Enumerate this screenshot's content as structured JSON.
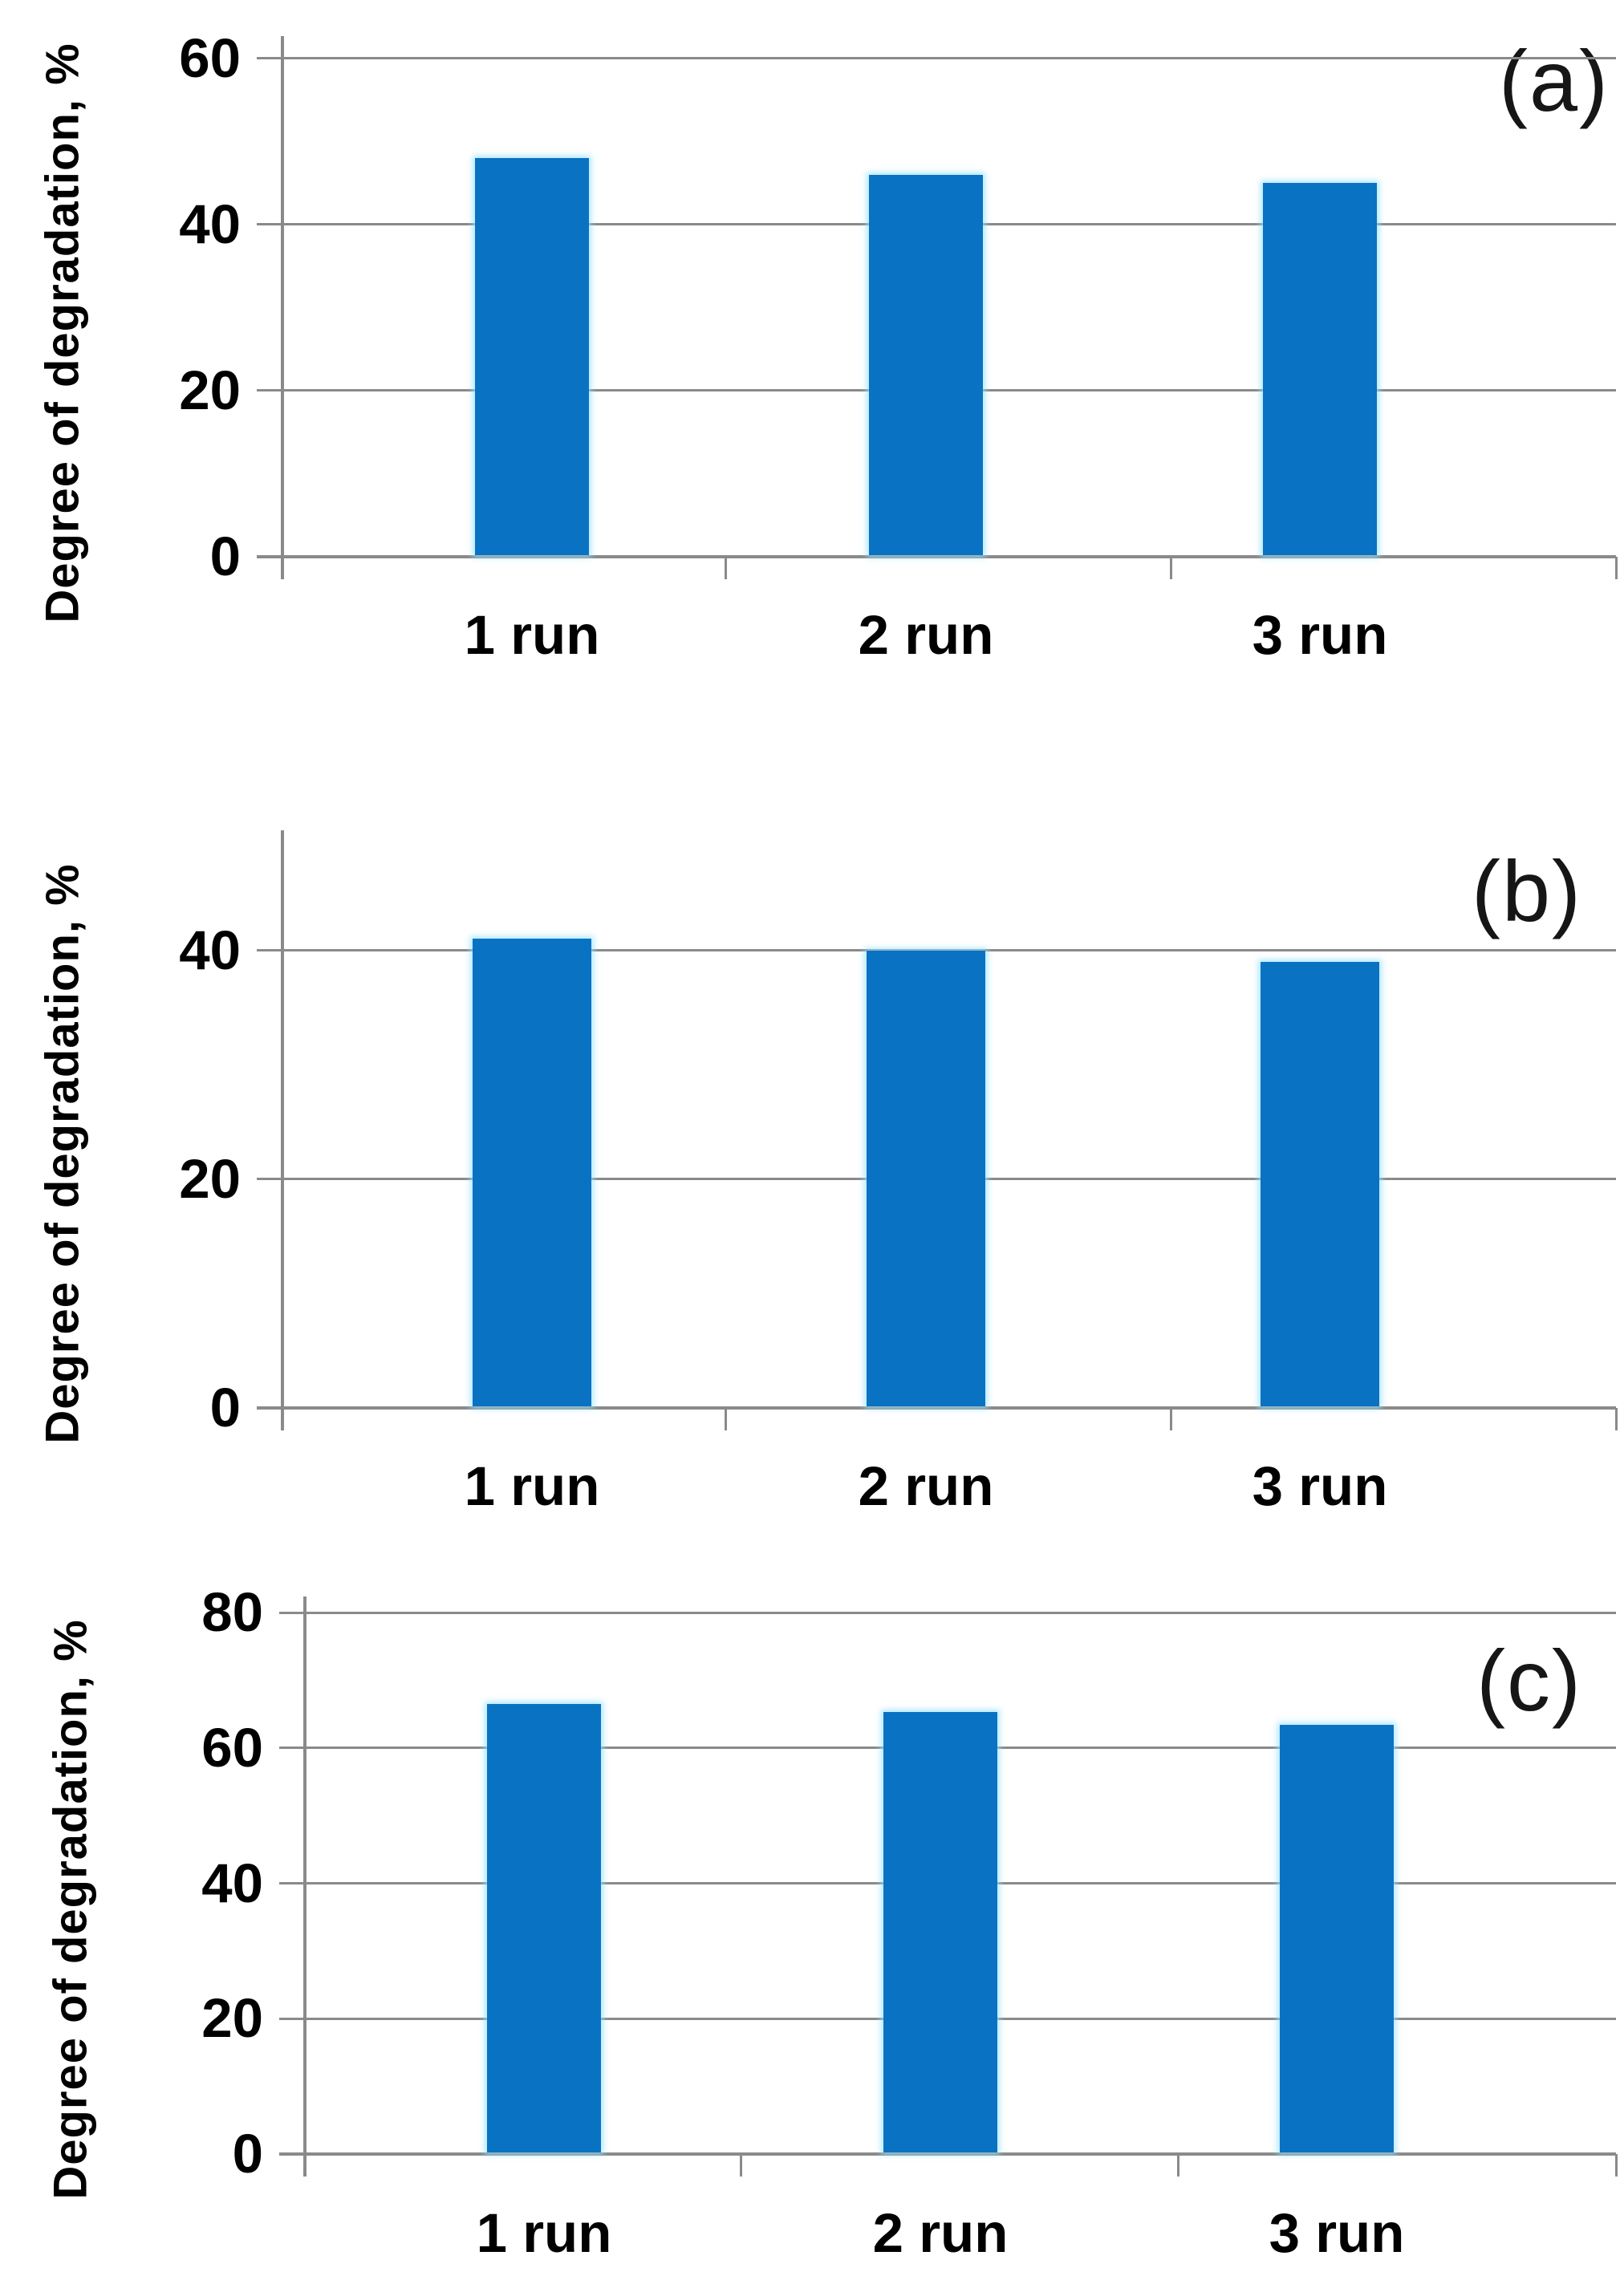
{
  "figure": {
    "background_color": "#ffffff",
    "description_visible_text_only": true
  },
  "styles": {
    "bar_color": "#0a72c2",
    "grid_color": "#8a8a8a",
    "text_color": "#000000",
    "panel_letter_color": "#161616"
  },
  "chart_data": [
    {
      "type": "bar",
      "panel_label": "(a)",
      "title": "",
      "ylabel": "Degree of degradation, %",
      "xlabel": "",
      "categories": [
        "1 run",
        "2 run",
        "3 run"
      ],
      "values": [
        48,
        46,
        45
      ],
      "yticks": [
        0,
        20,
        40,
        60
      ],
      "ylim": [
        0,
        62.7
      ],
      "grid": true,
      "legend": "none",
      "bar_color": "#0a72c2"
    },
    {
      "type": "bar",
      "panel_label": "(b)",
      "title": "",
      "ylabel": "Degree of degradation, %",
      "xlabel": "",
      "categories": [
        "1 run",
        "2 run",
        "3 run"
      ],
      "values": [
        41,
        40,
        39
      ],
      "yticks": [
        0,
        20,
        40
      ],
      "ylim": [
        0,
        50.5
      ],
      "grid": true,
      "legend": "none",
      "bar_color": "#0a72c2"
    },
    {
      "type": "bar",
      "panel_label": "(c)",
      "title": "",
      "ylabel": "Degree of degradation, %",
      "xlabel": "",
      "categories": [
        "1 run",
        "2 run",
        "3 run"
      ],
      "values": [
        66.5,
        65.3,
        63.4
      ],
      "yticks": [
        0,
        20,
        40,
        60,
        80
      ],
      "ylim": [
        0,
        82.4
      ],
      "grid": true,
      "legend": "none",
      "bar_color": "#0a72c2"
    }
  ]
}
